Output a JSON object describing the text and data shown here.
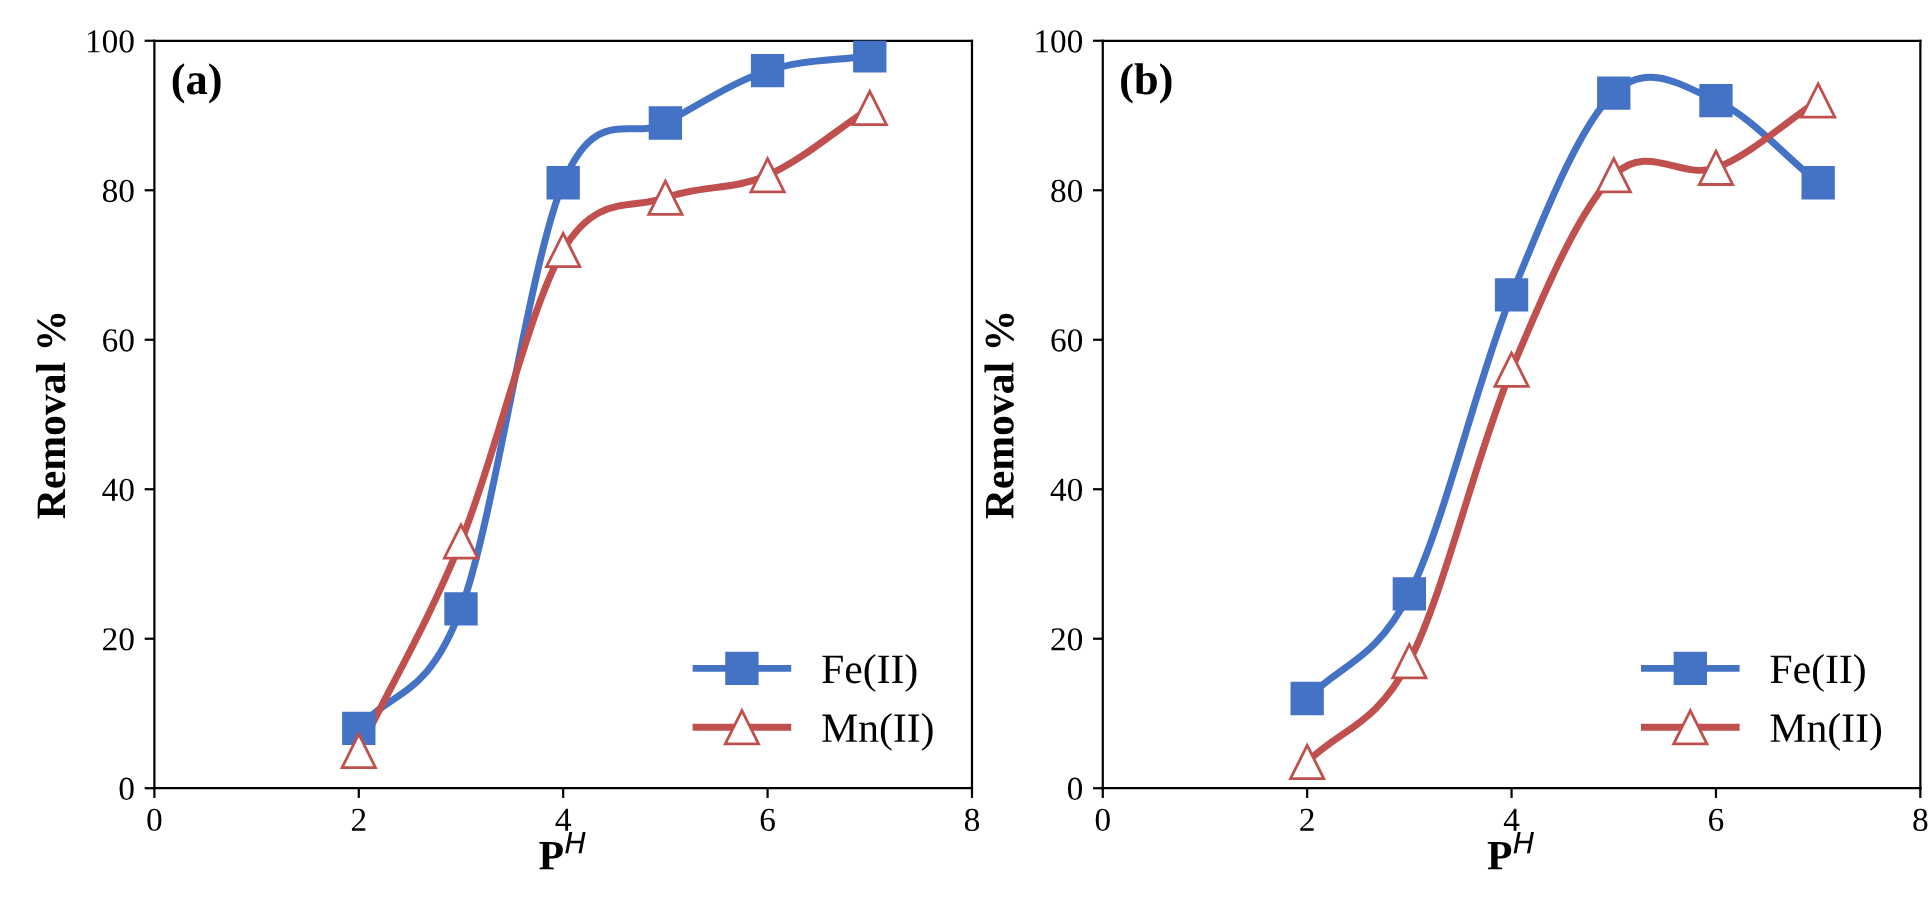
{
  "chart_data": [
    {
      "type": "line",
      "title": "(a)",
      "xlabel": "P$^{H}$",
      "ylabel": "Removal %",
      "x": [
        2,
        3,
        4,
        5,
        6,
        7
      ],
      "xlim": [
        0,
        8
      ],
      "xticks": [
        0,
        2,
        4,
        6,
        8
      ],
      "ylim": [
        0,
        100
      ],
      "yticks": [
        0,
        20,
        40,
        60,
        80,
        100
      ],
      "grid": false,
      "legend": "bottom right",
      "series": [
        {
          "name": "Fe(II)",
          "color": "#4472c4",
          "marker": "square",
          "values": [
            8,
            24,
            81,
            89,
            96,
            98
          ]
        },
        {
          "name": "Mn(II)",
          "color": "#c0504d",
          "marker": "triangle",
          "values": [
            5,
            33,
            72,
            79,
            82,
            91
          ]
        }
      ]
    },
    {
      "type": "line",
      "title": "(b)",
      "xlabel": "P$^{H}$",
      "ylabel": "Removal %",
      "x": [
        2,
        3,
        4,
        5,
        6,
        7
      ],
      "xlim": [
        0,
        8
      ],
      "xticks": [
        0,
        2,
        4,
        6,
        8
      ],
      "ylim": [
        0,
        100
      ],
      "yticks": [
        0,
        20,
        40,
        60,
        80,
        100
      ],
      "grid": false,
      "legend": "bottom right",
      "series": [
        {
          "name": "Fe(II)",
          "color": "#4472c4",
          "marker": "square",
          "values": [
            12,
            26,
            66,
            93,
            92,
            81
          ]
        },
        {
          "name": "Mn(II)",
          "color": "#c0504d",
          "marker": "triangle",
          "values": [
            3.5,
            17,
            56,
            82,
            83,
            92
          ]
        }
      ]
    }
  ]
}
